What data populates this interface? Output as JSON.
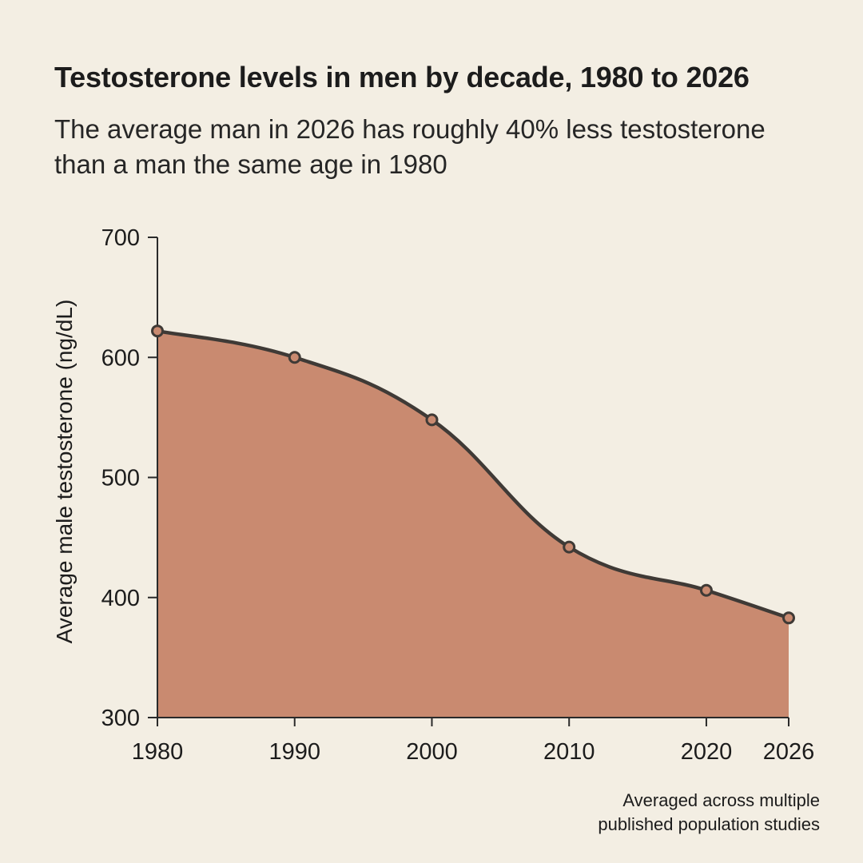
{
  "title": "Testosterone levels in men by decade, 1980 to 2026",
  "subtitle": "The average man in 2026 has roughly 40% less testosterone than a man the same age in 1980",
  "note": {
    "line1": "Averaged across multiple",
    "line2": "published population studies"
  },
  "colors": {
    "background": "#f3eee3",
    "area_fill": "#c98a70",
    "line": "#3f3a36",
    "marker_fill": "#c98a70"
  },
  "chart_data": {
    "type": "area",
    "title": "Testosterone levels in men by decade, 1980 to 2026",
    "subtitle": "The average man in 2026 has roughly 40% less testosterone than a man the same age in 1980",
    "xlabel": "",
    "ylabel": "Average male testosterone (ng/dL)",
    "x": [
      1980,
      1990,
      2000,
      2010,
      2020,
      2026
    ],
    "xticks": [
      "1980",
      "1990",
      "2000",
      "2010",
      "2020",
      "2026"
    ],
    "values": [
      622,
      600,
      548,
      442,
      406,
      383
    ],
    "yticks": [
      "700",
      "600",
      "500",
      "400",
      "300"
    ],
    "ylim": [
      300,
      700
    ],
    "xlim": [
      1980,
      2026
    ],
    "grid": false,
    "markers": true,
    "smooth": true
  }
}
